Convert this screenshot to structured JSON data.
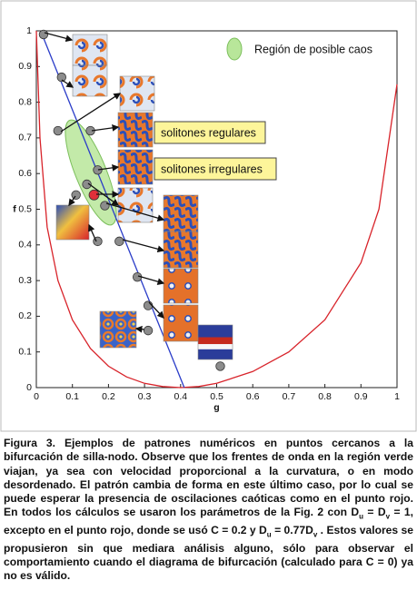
{
  "chart_data": {
    "type": "scatter",
    "xlabel": "g",
    "ylabel": "f",
    "xlim": [
      0,
      1
    ],
    "ylim": [
      0,
      1
    ],
    "xticks": [
      0,
      0.1,
      0.2,
      0.3,
      0.4,
      0.5,
      0.6,
      0.7,
      0.8,
      0.9,
      1
    ],
    "yticks": [
      0,
      0.1,
      0.2,
      0.3,
      0.4,
      0.5,
      0.6,
      0.7,
      0.8,
      0.9,
      1
    ],
    "points": {
      "color": "#8c8c8c",
      "x": [
        0.02,
        0.07,
        0.06,
        0.15,
        0.17,
        0.14,
        0.11,
        0.19,
        0.17,
        0.23,
        0.28,
        0.31,
        0.31,
        0.51
      ],
      "y": [
        0.99,
        0.87,
        0.72,
        0.72,
        0.61,
        0.57,
        0.54,
        0.51,
        0.41,
        0.41,
        0.31,
        0.23,
        0.16,
        0.06
      ]
    },
    "highlight": {
      "color": "#e0303a",
      "x": 0.16,
      "y": 0.54
    },
    "curves": [
      {
        "color": "#d8232a",
        "x": [
          0,
          0.01,
          0.03,
          0.06,
          0.1,
          0.15,
          0.2,
          0.25,
          0.3,
          0.35,
          0.4,
          0.45,
          0.5,
          0.6,
          0.7,
          0.8,
          0.9,
          0.95,
          1
        ],
        "y": [
          1,
          0.7,
          0.45,
          0.3,
          0.19,
          0.11,
          0.06,
          0.03,
          0.012,
          0.003,
          0,
          0.003,
          0.012,
          0.045,
          0.1,
          0.19,
          0.35,
          0.5,
          0.85
        ]
      },
      {
        "color": "#2a3cc8",
        "x": [
          0.02,
          0.41
        ],
        "y": [
          0.98,
          0
        ]
      }
    ],
    "region_label": "Región de posible caos",
    "annotations": [
      "solitones regulares",
      "solitones irregulares"
    ]
  },
  "caption": [
    "Figura 3. Ejemplos de patrones numéricos en puntos cercanos a la bifurcación de silla-nodo. Observe que los frentes de onda en la región verde viajan, ya sea con velocidad proporcional a la curvatura, o en modo desordenado. El patrón cambia de forma en este último caso, por lo cual se puede esperar la presencia de oscilaciones caóticas como en el punto rojo. En todos los cálculos se usaron los parámetros de la Fig. 2 con D",
    "u",
    " = D",
    "v",
    " = 1, excepto en el punto rojo, donde se usó C = 0.2 y D",
    "u",
    " = 0.77D",
    "v",
    " . Estos valores se propusieron sin que mediara análisis alguno, sólo para observar el comportamiento cuando el diagrama de bifurcación (calculado para C = 0) ya no es válido."
  ]
}
